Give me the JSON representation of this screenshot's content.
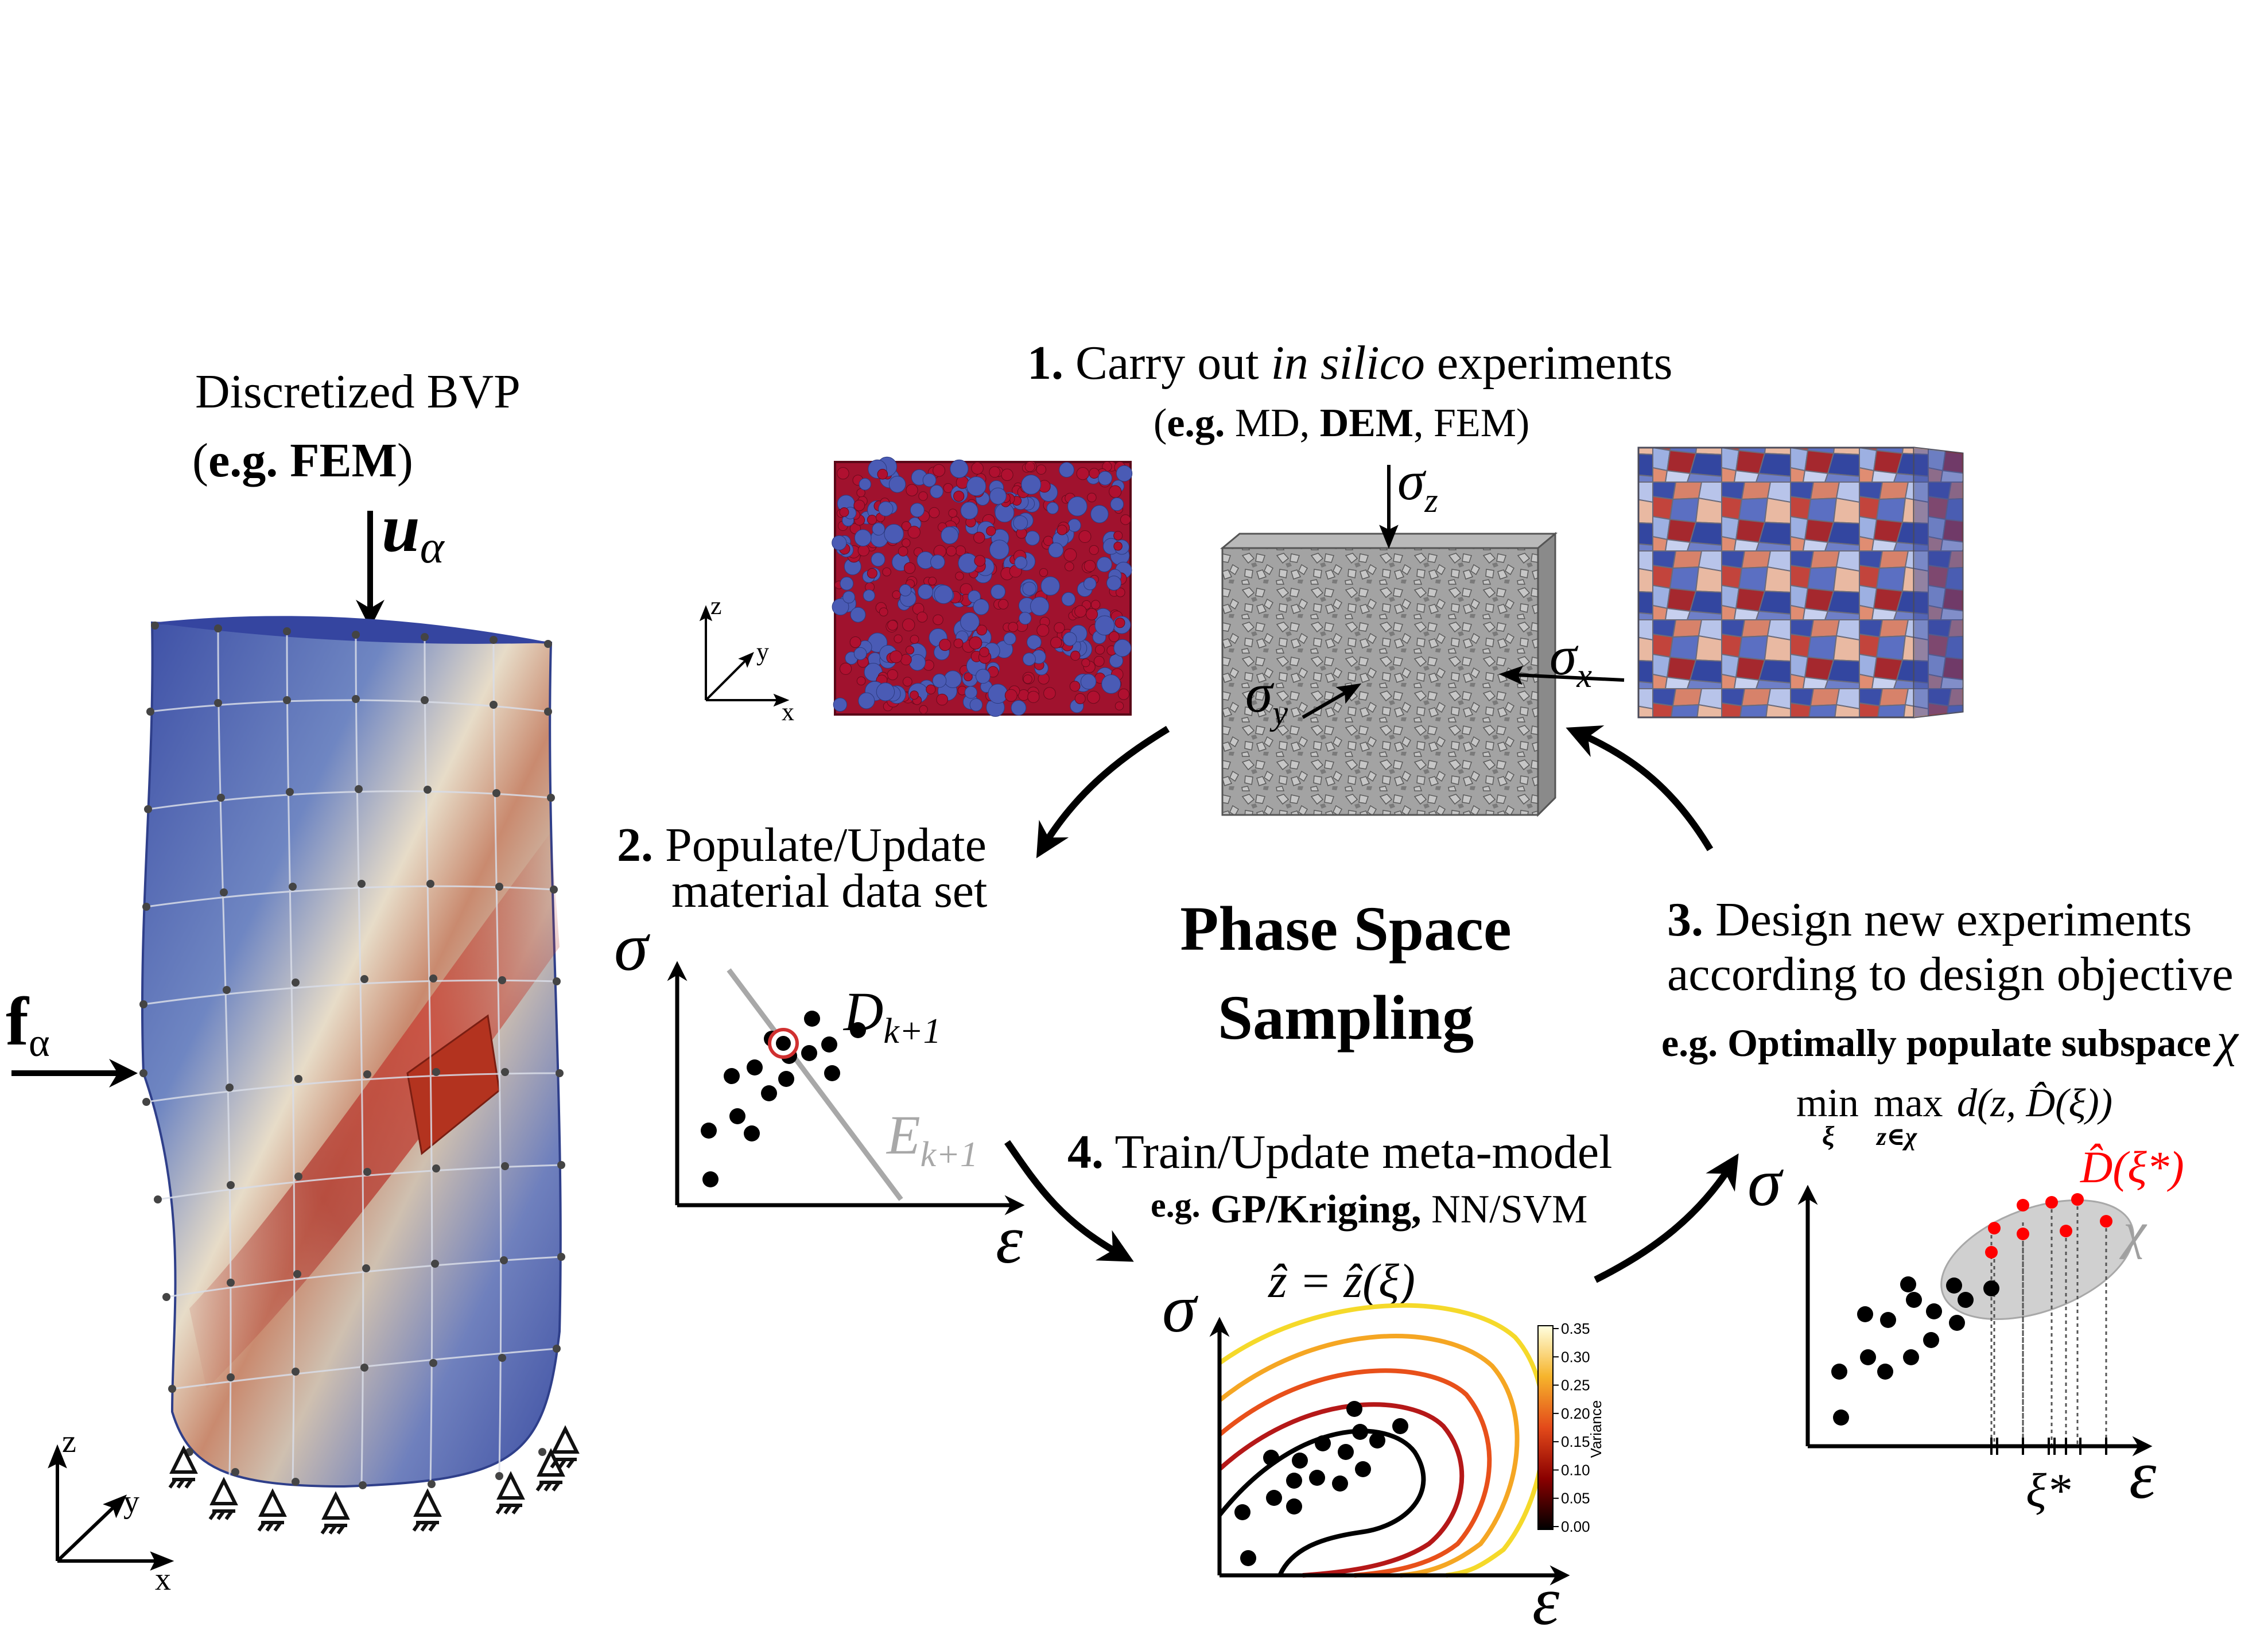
{
  "left": {
    "title": "Discretized BVP",
    "subtitle_open": "(",
    "subtitle_eg": "e.g. FEM",
    "subtitle_close": ")",
    "disp_symbol": "u",
    "disp_sub": "α",
    "force_symbol": "f",
    "force_sub": "α",
    "axes": {
      "z": "z",
      "y": "y",
      "x": "x"
    }
  },
  "step1": {
    "num": "1.",
    "text_a": " Carry out ",
    "text_italic": "in silico",
    "text_b": "  experiments",
    "sub_open": "(",
    "sub_eg": "e.g.",
    "sub_md": " MD, ",
    "sub_dem": "DEM",
    "sub_rest": ", FEM)",
    "sigma": "σ",
    "sub_z": "z",
    "sub_y": "y",
    "sub_x": "x",
    "axes": {
      "z": "z",
      "y": "y",
      "x": "x"
    }
  },
  "step2": {
    "num": "2.",
    "line1": " Populate/Update",
    "line2": "material data set",
    "sigma": "σ",
    "epsilon": "ε",
    "D": "D",
    "D_sub": "k+1",
    "E": "E",
    "E_sub": "k+1"
  },
  "center": {
    "line1": "Phase Space",
    "line2": "Sampling"
  },
  "step3": {
    "num": "3.",
    "line1": " Design new experiments",
    "line2": "according to design objective",
    "eg_bold": "e.g. Optimally populate subspace",
    "chi": "χ",
    "min": "min",
    "max": "max",
    "min_sub": "ξ",
    "max_sub": "z∈χ",
    "objective": "d(z, D̂(ξ))",
    "sigma": "σ",
    "epsilon": "ε",
    "dhat": "D̂(ξ*)",
    "chi_label": "χ",
    "xi_star": "ξ*",
    "red": "#ff0000",
    "grey": "#bdbdbd"
  },
  "step4": {
    "num": "4.",
    "line1": " Train/Update meta-model",
    "eg": "e.g.",
    "gp": " GP/Kriging,",
    "rest": " NN/SVM",
    "eq": "ẑ = ẑ(ξ)",
    "sigma": "σ",
    "epsilon": "ε",
    "colorbar_label": "Variance",
    "colorbar_ticks": [
      "0.35",
      "0.30",
      "0.25",
      "0.20",
      "0.15",
      "0.10",
      "0.05",
      "0.00"
    ]
  },
  "colors": {
    "mesh_blue": "#3f52a3",
    "dem_red": "#b01030",
    "dem_blue": "#4a5bb5",
    "grain_grey": "#9a9a9a",
    "line_grey": "#a8a8a8"
  }
}
